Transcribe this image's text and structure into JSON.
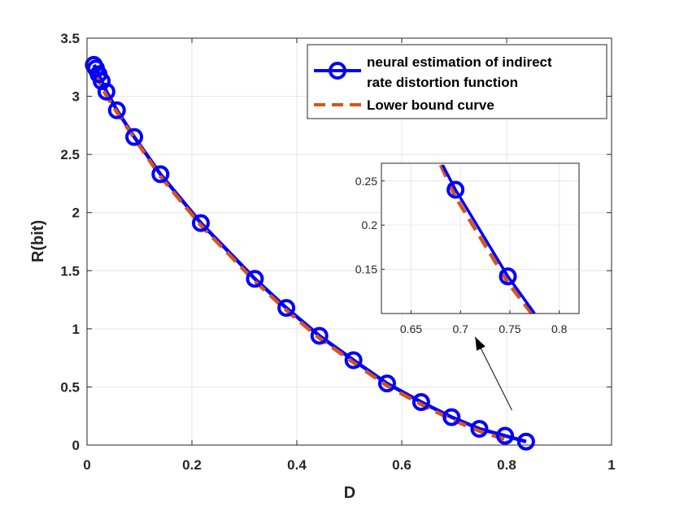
{
  "colors": {
    "neural": "#0000ff",
    "bound": "#d95319",
    "grid": "#e6e6e6",
    "axis": "#262626",
    "arrow": "#000000"
  },
  "chart_data": {
    "type": "line",
    "title": "",
    "xlabel": "D",
    "ylabel": "R(bit)",
    "xlim": [
      0,
      1
    ],
    "ylim": [
      0,
      3.5
    ],
    "xticks": [
      0,
      0.2,
      0.4,
      0.6,
      0.8,
      1
    ],
    "yticks": [
      0,
      0.5,
      1,
      1.5,
      2,
      2.5,
      3,
      3.5
    ],
    "xtick_labels": [
      "0",
      "0.2",
      "0.4",
      "0.6",
      "0.8",
      "1"
    ],
    "ytick_labels": [
      "0",
      "0.5",
      "1",
      "1.5",
      "2",
      "2.5",
      "3",
      "3.5"
    ],
    "grid": true,
    "legend": {
      "location": "top-right",
      "entries": [
        {
          "label_line1": "neural estimation of indirect",
          "label_line2": "rate distortion function"
        },
        {
          "label_line1": "Lower bound curve"
        }
      ]
    },
    "series": [
      {
        "name": "neural estimation of indirect rate distortion function",
        "style": "solid line with circle markers",
        "x": [
          0.013,
          0.017,
          0.022,
          0.028,
          0.037,
          0.057,
          0.09,
          0.14,
          0.217,
          0.32,
          0.38,
          0.443,
          0.508,
          0.572,
          0.637,
          0.695,
          0.748,
          0.797,
          0.837
        ],
        "y": [
          3.27,
          3.24,
          3.19,
          3.13,
          3.04,
          2.88,
          2.65,
          2.33,
          1.91,
          1.43,
          1.18,
          0.94,
          0.73,
          0.53,
          0.37,
          0.24,
          0.14,
          0.08,
          0.03
        ]
      },
      {
        "name": "Lower bound curve",
        "style": "dashed line",
        "x": [
          0.015,
          0.03,
          0.05,
          0.09,
          0.14,
          0.217,
          0.32,
          0.38,
          0.443,
          0.508,
          0.572,
          0.637,
          0.695,
          0.748,
          0.775,
          0.797
        ],
        "y": [
          3.2,
          3.06,
          2.91,
          2.64,
          2.31,
          1.89,
          1.41,
          1.16,
          0.92,
          0.71,
          0.51,
          0.35,
          0.22,
          0.12,
          0.08,
          0.05
        ]
      }
    ],
    "inset": {
      "xlim": [
        0.62,
        0.82
      ],
      "ylim": [
        0.1,
        0.27
      ],
      "xticks": [
        0.65,
        0.7,
        0.75,
        0.8
      ],
      "yticks": [
        0.15,
        0.2,
        0.25
      ],
      "xtick_labels": [
        "0.65",
        "0.7",
        "0.75",
        "0.8"
      ],
      "ytick_labels": [
        "0.15",
        "0.2",
        "0.25"
      ],
      "grid": true,
      "series": [
        {
          "name": "neural",
          "x": [
            0.682,
            0.695,
            0.748,
            0.775
          ],
          "y": [
            0.268,
            0.24,
            0.142,
            0.1
          ]
        },
        {
          "name": "bound",
          "x": [
            0.68,
            0.695,
            0.748,
            0.772
          ],
          "y": [
            0.268,
            0.232,
            0.135,
            0.1
          ]
        }
      ],
      "markers": {
        "x": [
          0.695,
          0.748
        ],
        "y": [
          0.24,
          0.142
        ]
      }
    },
    "annotation": {
      "type": "arrow",
      "from": [
        0.81,
        0.3
      ],
      "to": [
        0.74,
        0.93
      ],
      "target": "inset"
    }
  }
}
